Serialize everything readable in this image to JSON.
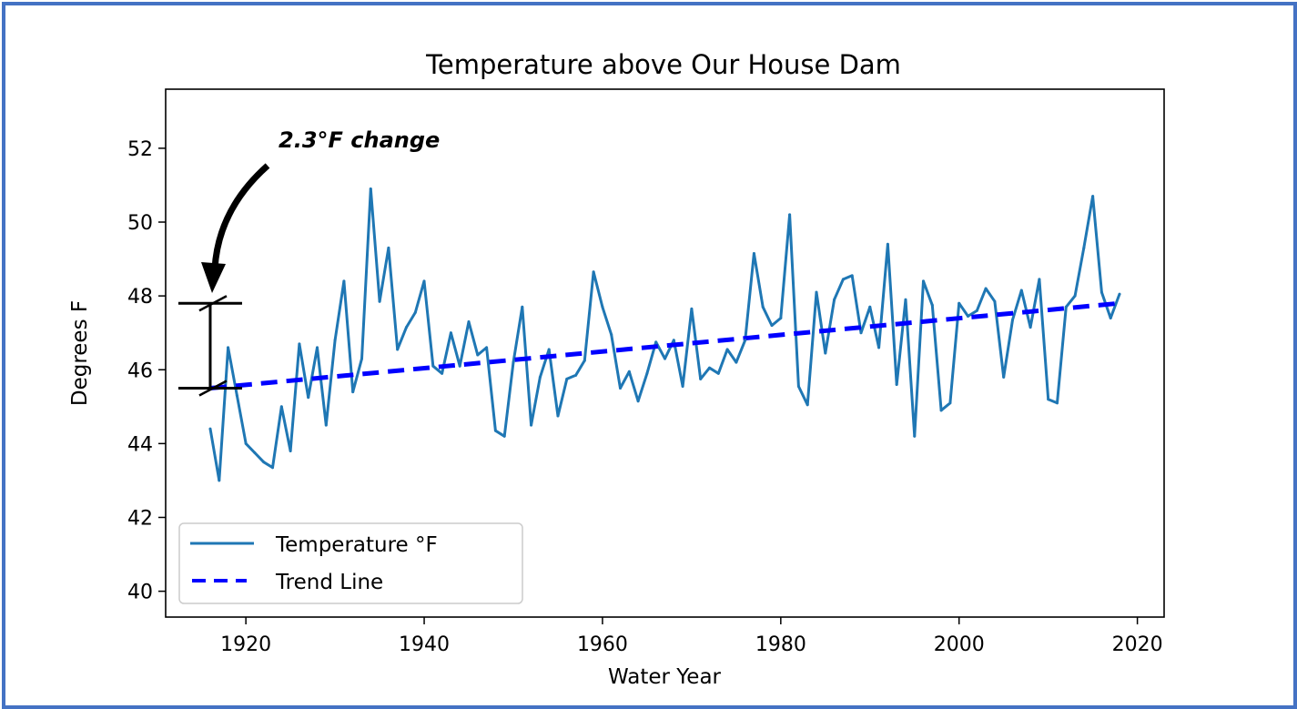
{
  "chart_data": {
    "type": "line",
    "title": "Temperature above Our House Dam",
    "xlabel": "Water Year",
    "ylabel": "Degrees F",
    "xlim": [
      1911,
      2023
    ],
    "ylim": [
      39.3,
      53.6
    ],
    "xticks": [
      1920,
      1940,
      1960,
      1980,
      2000,
      2020
    ],
    "xtick_labels": [
      "1920",
      "1940",
      "1960",
      "1980",
      "2000",
      "2020"
    ],
    "yticks": [
      40,
      42,
      44,
      46,
      48,
      50,
      52
    ],
    "ytick_labels": [
      "40",
      "42",
      "44",
      "46",
      "48",
      "50",
      "52"
    ],
    "grid": false,
    "legend_position": "lower-left",
    "series": [
      {
        "name": "Temperature °F",
        "color": "#1f77b4",
        "style": "solid",
        "x": [
          1916,
          1917,
          1918,
          1919,
          1920,
          1921,
          1922,
          1923,
          1924,
          1925,
          1926,
          1927,
          1928,
          1929,
          1930,
          1931,
          1932,
          1933,
          1934,
          1935,
          1936,
          1937,
          1938,
          1939,
          1940,
          1941,
          1942,
          1943,
          1944,
          1945,
          1946,
          1947,
          1948,
          1949,
          1950,
          1951,
          1952,
          1953,
          1954,
          1955,
          1956,
          1957,
          1958,
          1959,
          1960,
          1961,
          1962,
          1963,
          1964,
          1965,
          1966,
          1967,
          1968,
          1969,
          1970,
          1971,
          1972,
          1973,
          1974,
          1975,
          1976,
          1977,
          1978,
          1979,
          1980,
          1981,
          1982,
          1983,
          1984,
          1985,
          1986,
          1987,
          1988,
          1989,
          1990,
          1991,
          1992,
          1993,
          1994,
          1995,
          1996,
          1997,
          1998,
          1999,
          2000,
          2001,
          2002,
          2003,
          2004,
          2005,
          2006,
          2007,
          2008,
          2009,
          2010,
          2011,
          2012,
          2013,
          2014,
          2015,
          2016,
          2017,
          2018
        ],
        "values": [
          44.4,
          43.0,
          46.6,
          45.3,
          44.0,
          43.75,
          43.5,
          43.35,
          45.0,
          43.8,
          46.7,
          45.25,
          46.6,
          44.5,
          46.8,
          48.4,
          45.4,
          46.3,
          50.9,
          47.85,
          49.3,
          46.55,
          47.15,
          47.55,
          48.4,
          46.1,
          45.9,
          47.0,
          46.1,
          47.3,
          46.4,
          46.6,
          44.35,
          44.2,
          46.2,
          47.7,
          44.5,
          45.8,
          46.55,
          44.75,
          45.75,
          45.85,
          46.25,
          48.65,
          47.7,
          46.95,
          45.5,
          45.95,
          45.15,
          45.9,
          46.75,
          46.3,
          46.8,
          45.55,
          47.65,
          45.75,
          46.05,
          45.9,
          46.55,
          46.2,
          46.8,
          49.15,
          47.7,
          47.2,
          47.4,
          50.2,
          45.55,
          45.05,
          48.1,
          46.45,
          47.9,
          48.45,
          48.55,
          47.0,
          47.7,
          46.6,
          49.4,
          45.6,
          47.9,
          44.2,
          48.4,
          47.75,
          44.9,
          45.1,
          47.8,
          47.45,
          47.6,
          48.2,
          47.85,
          45.8,
          47.35,
          48.15,
          47.15,
          48.45,
          45.2,
          45.1,
          47.7,
          48.0,
          49.3,
          50.7,
          48.1,
          47.4,
          48.05
        ]
      },
      {
        "name": "Trend Line",
        "color": "#0000ff",
        "style": "dashed",
        "x": [
          1916,
          2018
        ],
        "values": [
          45.5,
          47.8
        ]
      }
    ],
    "annotations": [
      {
        "text": "2.3°F change",
        "type": "arrow-and-bracket",
        "bracket_x": 1916,
        "bracket_range": [
          45.5,
          47.8
        ]
      }
    ]
  },
  "frame_color": "#4472c4"
}
